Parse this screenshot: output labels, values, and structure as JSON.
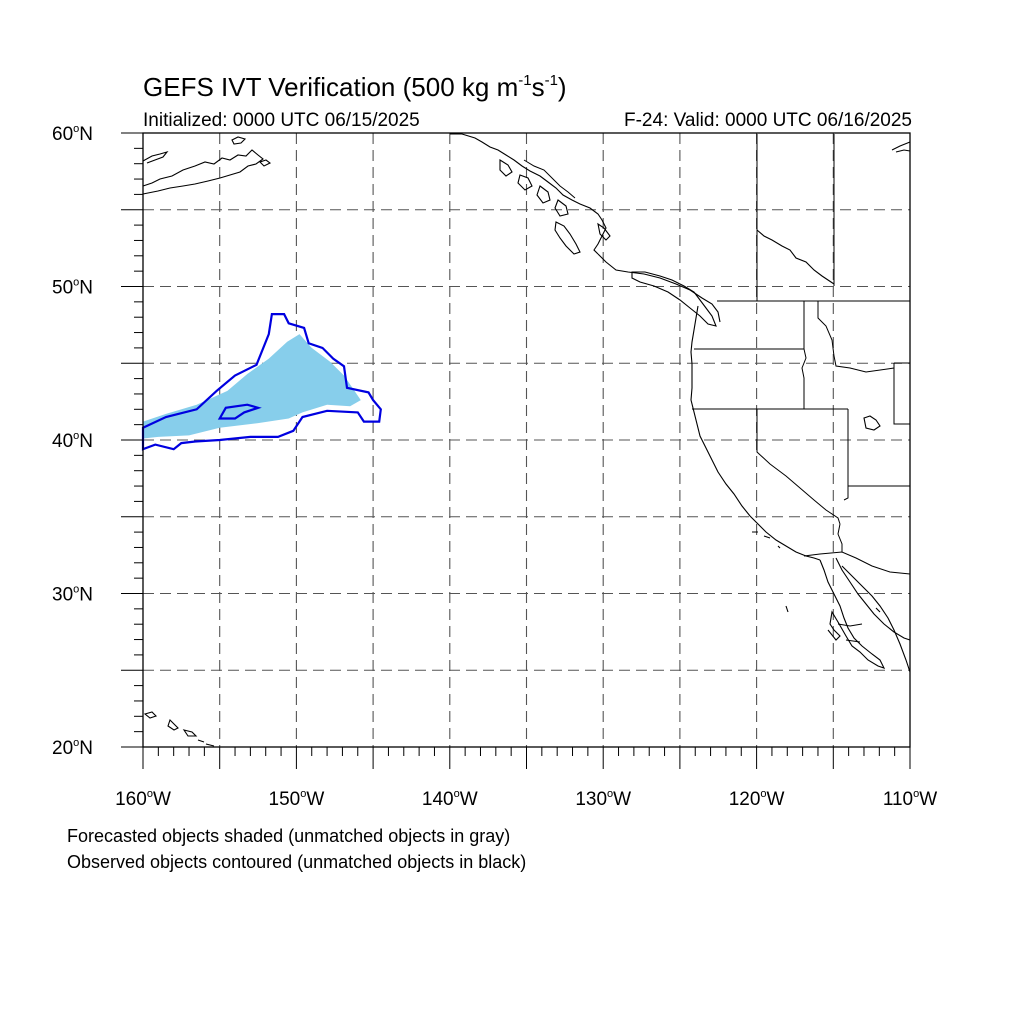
{
  "header": {
    "title_main": "GEFS IVT Verification (500 kg m",
    "title_exp1": "-1",
    "title_mid": "s",
    "title_exp2": "-1",
    "title_end": ")",
    "initialized": "Initialized: 0000 UTC 06/15/2025",
    "valid": "F-24: Valid: 0000 UTC 06/16/2025"
  },
  "map": {
    "projection": "cylindrical equidistant",
    "lon_range": [
      -160,
      -110
    ],
    "lat_range": [
      20,
      60
    ],
    "grid": "dashed, every 5 degrees",
    "lat_labels": [
      {
        "value": 60,
        "text": "60",
        "hemi": "N"
      },
      {
        "value": 50,
        "text": "50",
        "hemi": "N"
      },
      {
        "value": 40,
        "text": "40",
        "hemi": "N"
      },
      {
        "value": 30,
        "text": "30",
        "hemi": "N"
      },
      {
        "value": 20,
        "text": "20",
        "hemi": "N"
      }
    ],
    "lon_labels": [
      {
        "value": -160,
        "text": "160",
        "hemi": "W"
      },
      {
        "value": -150,
        "text": "150",
        "hemi": "W"
      },
      {
        "value": -140,
        "text": "140",
        "hemi": "W"
      },
      {
        "value": -130,
        "text": "130",
        "hemi": "W"
      },
      {
        "value": -120,
        "text": "120",
        "hemi": "W"
      },
      {
        "value": -110,
        "text": "110",
        "hemi": "W"
      }
    ],
    "forecast_object_color": "#87ceeb",
    "observed_contour_color": "#0000e0",
    "forecast_object": [
      [
        -160,
        41.2
      ],
      [
        -158.5,
        41.7
      ],
      [
        -156.5,
        42.3
      ],
      [
        -154.5,
        43.2
      ],
      [
        -153.2,
        44.3
      ],
      [
        -151.8,
        45.3
      ],
      [
        -150.6,
        46.4
      ],
      [
        -149.8,
        46.9
      ],
      [
        -149.0,
        46.0
      ],
      [
        -147.8,
        45.1
      ],
      [
        -146.9,
        44.2
      ],
      [
        -145.8,
        42.6
      ],
      [
        -146.5,
        42.2
      ],
      [
        -148.0,
        42.3
      ],
      [
        -149.6,
        41.8
      ],
      [
        -150.5,
        41.4
      ],
      [
        -152.5,
        41.1
      ],
      [
        -155.0,
        40.8
      ],
      [
        -157.0,
        40.3
      ],
      [
        -159.0,
        40.2
      ],
      [
        -160,
        40.1
      ]
    ],
    "observed_contour": [
      [
        -160,
        40.8
      ],
      [
        -158.5,
        41.5
      ],
      [
        -156.5,
        42.0
      ],
      [
        -155.2,
        43.2
      ],
      [
        -154.0,
        44.2
      ],
      [
        -152.6,
        44.9
      ],
      [
        -152.2,
        45.9
      ],
      [
        -151.8,
        46.9
      ],
      [
        -151.6,
        48.2
      ],
      [
        -150.8,
        48.2
      ],
      [
        -150.5,
        47.6
      ],
      [
        -149.5,
        47.3
      ],
      [
        -149.2,
        46.3
      ],
      [
        -148.3,
        46.0
      ],
      [
        -147.6,
        45.3
      ],
      [
        -146.9,
        44.8
      ],
      [
        -146.7,
        43.4
      ],
      [
        -145.3,
        43.1
      ],
      [
        -145.0,
        42.6
      ],
      [
        -144.5,
        42.0
      ],
      [
        -144.6,
        41.2
      ],
      [
        -145.6,
        41.2
      ],
      [
        -146.0,
        41.8
      ],
      [
        -148.0,
        41.9
      ],
      [
        -149.6,
        41.5
      ],
      [
        -150.2,
        40.6
      ],
      [
        -151.2,
        40.2
      ],
      [
        -153.0,
        40.2
      ],
      [
        -155.0,
        40.0
      ],
      [
        -156.6,
        39.9
      ],
      [
        -157.5,
        39.8
      ],
      [
        -158.0,
        39.4
      ],
      [
        -159.2,
        39.7
      ],
      [
        -160,
        39.4
      ]
    ],
    "observed_hole": [
      [
        -155.0,
        41.4
      ],
      [
        -154.6,
        42.1
      ],
      [
        -153.2,
        42.3
      ],
      [
        -152.5,
        42.1
      ],
      [
        -153.4,
        41.8
      ],
      [
        -154.0,
        41.4
      ]
    ]
  },
  "captions": {
    "line1": "Forecasted objects shaded (unmatched objects in gray)",
    "line2": "Observed objects contoured (unmatched objects in black)"
  }
}
